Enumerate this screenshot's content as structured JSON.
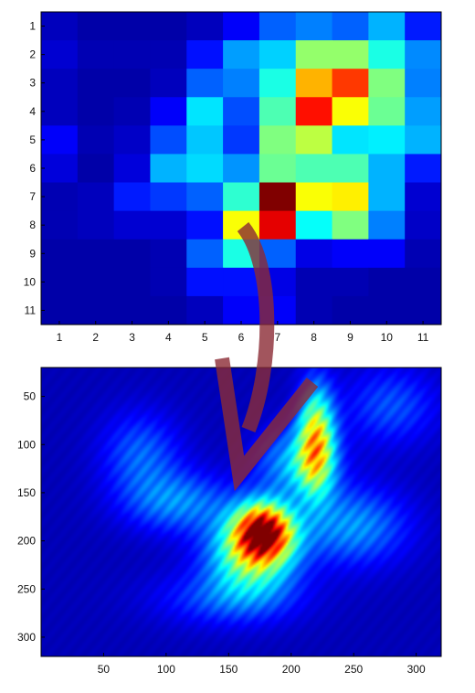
{
  "chart_data": [
    {
      "type": "heatmap",
      "colormap": "jet",
      "title": "",
      "xlabel": "",
      "ylabel": "",
      "x_ticks": [
        "1",
        "2",
        "3",
        "4",
        "5",
        "6",
        "7",
        "8",
        "9",
        "10",
        "11"
      ],
      "y_ticks": [
        "1",
        "2",
        "3",
        "4",
        "5",
        "6",
        "7",
        "8",
        "9",
        "10",
        "11"
      ],
      "grid": false,
      "clim": [
        0,
        1
      ],
      "values": [
        [
          0.06,
          0.04,
          0.04,
          0.04,
          0.06,
          0.12,
          0.22,
          0.25,
          0.22,
          0.3,
          0.15
        ],
        [
          0.08,
          0.05,
          0.05,
          0.05,
          0.14,
          0.28,
          0.33,
          0.52,
          0.52,
          0.4,
          0.26
        ],
        [
          0.06,
          0.04,
          0.04,
          0.06,
          0.22,
          0.25,
          0.4,
          0.7,
          0.82,
          0.5,
          0.25
        ],
        [
          0.06,
          0.04,
          0.05,
          0.12,
          0.35,
          0.2,
          0.45,
          0.86,
          0.62,
          0.48,
          0.28
        ],
        [
          0.12,
          0.05,
          0.07,
          0.2,
          0.32,
          0.18,
          0.5,
          0.56,
          0.35,
          0.36,
          0.3
        ],
        [
          0.09,
          0.04,
          0.09,
          0.3,
          0.34,
          0.27,
          0.48,
          0.45,
          0.45,
          0.3,
          0.15
        ],
        [
          0.05,
          0.06,
          0.15,
          0.18,
          0.22,
          0.42,
          1.0,
          0.62,
          0.64,
          0.3,
          0.08
        ],
        [
          0.05,
          0.06,
          0.08,
          0.08,
          0.14,
          0.62,
          0.9,
          0.38,
          0.5,
          0.25,
          0.07
        ],
        [
          0.04,
          0.04,
          0.04,
          0.05,
          0.22,
          0.4,
          0.22,
          0.1,
          0.12,
          0.12,
          0.05
        ],
        [
          0.04,
          0.04,
          0.04,
          0.05,
          0.14,
          0.14,
          0.1,
          0.05,
          0.05,
          0.04,
          0.04
        ],
        [
          0.04,
          0.04,
          0.04,
          0.04,
          0.06,
          0.12,
          0.12,
          0.05,
          0.04,
          0.04,
          0.04
        ]
      ]
    },
    {
      "type": "heatmap",
      "colormap": "jet",
      "title": "",
      "xlabel": "",
      "ylabel": "",
      "x_ticks": [
        "50",
        "100",
        "150",
        "200",
        "250",
        "300"
      ],
      "y_ticks": [
        "50",
        "100",
        "150",
        "200",
        "250",
        "300"
      ],
      "xlim": [
        0,
        320
      ],
      "ylim": [
        20,
        320
      ],
      "grid": false,
      "background_level": 0.06,
      "hotspots": [
        {
          "x": 178,
          "y": 190,
          "sx": 16,
          "sy": 20,
          "peak": 0.92
        },
        {
          "x": 168,
          "y": 215,
          "sx": 24,
          "sy": 28,
          "peak": 0.48
        },
        {
          "x": 220,
          "y": 95,
          "sx": 10,
          "sy": 38,
          "peak": 0.62
        },
        {
          "x": 205,
          "y": 120,
          "sx": 22,
          "sy": 26,
          "peak": 0.28
        },
        {
          "x": 110,
          "y": 160,
          "sx": 30,
          "sy": 22,
          "peak": 0.22
        },
        {
          "x": 80,
          "y": 110,
          "sx": 22,
          "sy": 30,
          "peak": 0.18
        },
        {
          "x": 250,
          "y": 185,
          "sx": 30,
          "sy": 28,
          "peak": 0.24
        },
        {
          "x": 150,
          "y": 260,
          "sx": 40,
          "sy": 20,
          "peak": 0.16
        },
        {
          "x": 280,
          "y": 60,
          "sx": 26,
          "sy": 28,
          "peak": 0.16
        }
      ]
    }
  ],
  "annotation": {
    "arrow_color": "#8b2a34",
    "arrow_opacity": 0.8,
    "icon": "curved-arrow-icon"
  }
}
